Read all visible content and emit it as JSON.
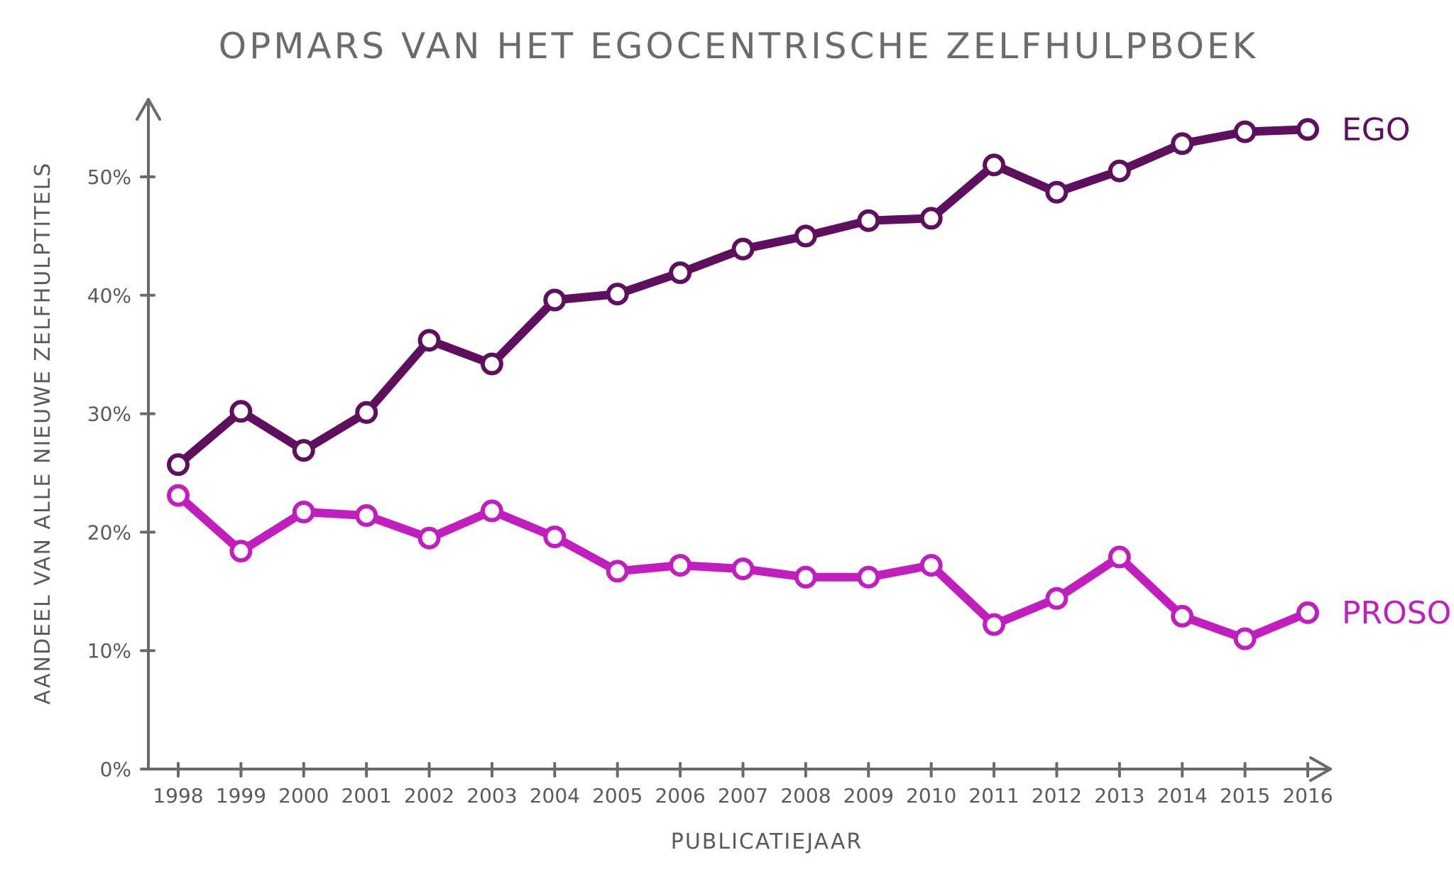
{
  "chart_data": {
    "type": "line",
    "title": "OPMARS VAN HET EGOCENTRISCHE ZELFHULPBOEK",
    "xlabel": "PUBLICATIEJAAR",
    "ylabel": "AANDEEL VAN ALLE NIEUWE ZELFHULPTITELS",
    "ylim": [
      0,
      55
    ],
    "yticks": [
      0,
      10,
      20,
      30,
      40,
      50
    ],
    "ytick_labels": [
      "0%",
      "10%",
      "20%",
      "30%",
      "40%",
      "50%"
    ],
    "grid": false,
    "legend": "labels at right end of lines",
    "categories": [
      "1998",
      "1999",
      "2000",
      "2001",
      "2002",
      "2003",
      "2004",
      "2005",
      "2006",
      "2007",
      "2008",
      "2009",
      "2010",
      "2011",
      "2012",
      "2013",
      "2014",
      "2015",
      "2016"
    ],
    "series": [
      {
        "name": "EGO",
        "color": "#5e0f5e",
        "values": [
          25.7,
          30.2,
          26.9,
          30.1,
          36.2,
          34.2,
          39.6,
          40.1,
          41.9,
          43.9,
          45.0,
          46.3,
          46.5,
          51.0,
          48.7,
          50.5,
          52.8,
          53.8,
          54.0
        ]
      },
      {
        "name": "PROSO",
        "color": "#c21dbf",
        "values": [
          23.1,
          18.4,
          21.7,
          21.4,
          19.5,
          21.8,
          19.6,
          16.7,
          17.2,
          16.9,
          16.2,
          16.2,
          17.2,
          12.2,
          14.4,
          17.9,
          12.9,
          11.0,
          13.2
        ]
      }
    ]
  }
}
